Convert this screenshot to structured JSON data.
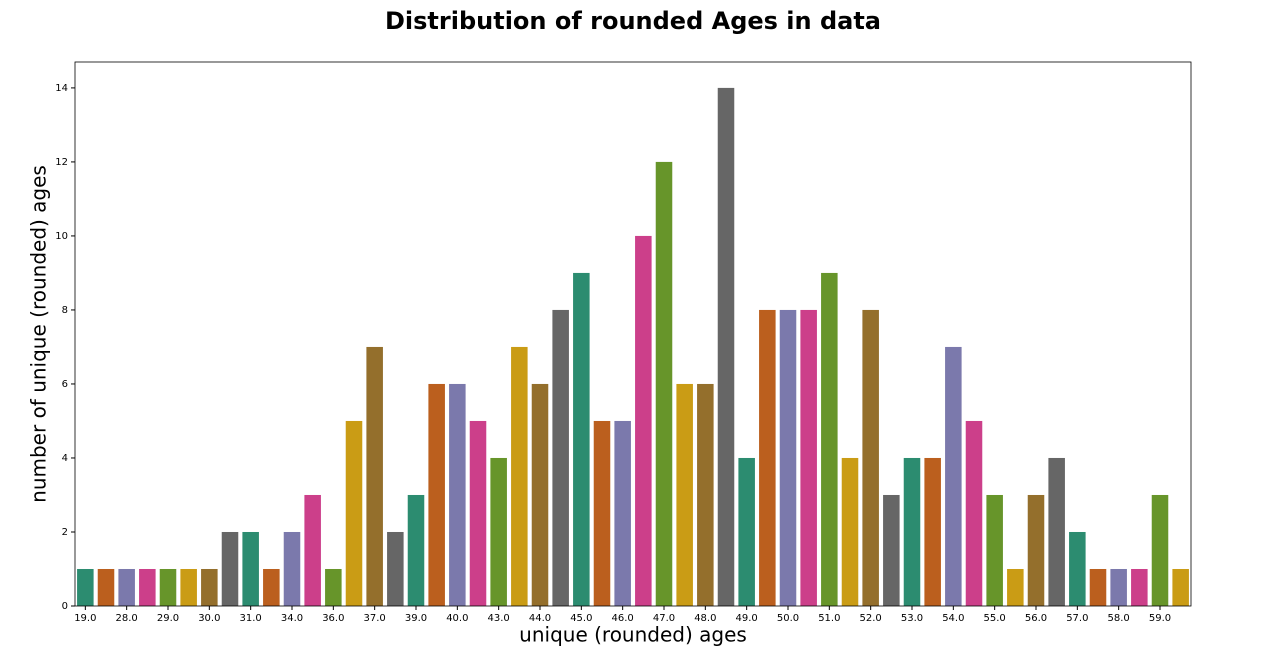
{
  "chart_data": {
    "type": "bar",
    "title": "Distribution of rounded Ages in data",
    "x_label": "unique (rounded) ages",
    "y_label": "number of unique (rounded) ages",
    "categories": [
      "19.0",
      null,
      "28.0",
      null,
      "29.0",
      null,
      "30.0",
      null,
      "31.0",
      null,
      "34.0",
      null,
      "36.0",
      null,
      "37.0",
      null,
      "39.0",
      null,
      "40.0",
      null,
      "43.0",
      null,
      "44.0",
      null,
      "45.0",
      null,
      "46.0",
      null,
      "47.0",
      null,
      "48.0",
      null,
      "49.0",
      null,
      "50.0",
      null,
      "51.0",
      null,
      "52.0",
      null,
      "53.0",
      null,
      "54.0",
      null,
      "55.0",
      null,
      "56.0",
      null,
      "57.0",
      null,
      "58.0",
      null,
      "59.0",
      null
    ],
    "values": [
      1,
      1,
      1,
      1,
      1,
      1,
      1,
      2,
      2,
      1,
      2,
      3,
      1,
      5,
      7,
      2,
      3,
      6,
      6,
      5,
      4,
      7,
      6,
      8,
      9,
      5,
      5,
      10,
      12,
      6,
      6,
      14,
      4,
      8,
      8,
      8,
      9,
      4,
      8,
      3,
      4,
      4,
      7,
      5,
      3,
      1,
      3,
      4,
      2,
      1,
      1,
      1,
      3,
      1
    ],
    "colors": [
      "#2c8c70",
      "#bb5f1e",
      "#7b79ac",
      "#cc3f8a",
      "#67952a",
      "#ca9c15",
      "#946f2c",
      "#666666"
    ],
    "ylim": [
      0,
      14.7
    ],
    "yticks": [
      0,
      2,
      4,
      6,
      8,
      10,
      12,
      14
    ]
  }
}
